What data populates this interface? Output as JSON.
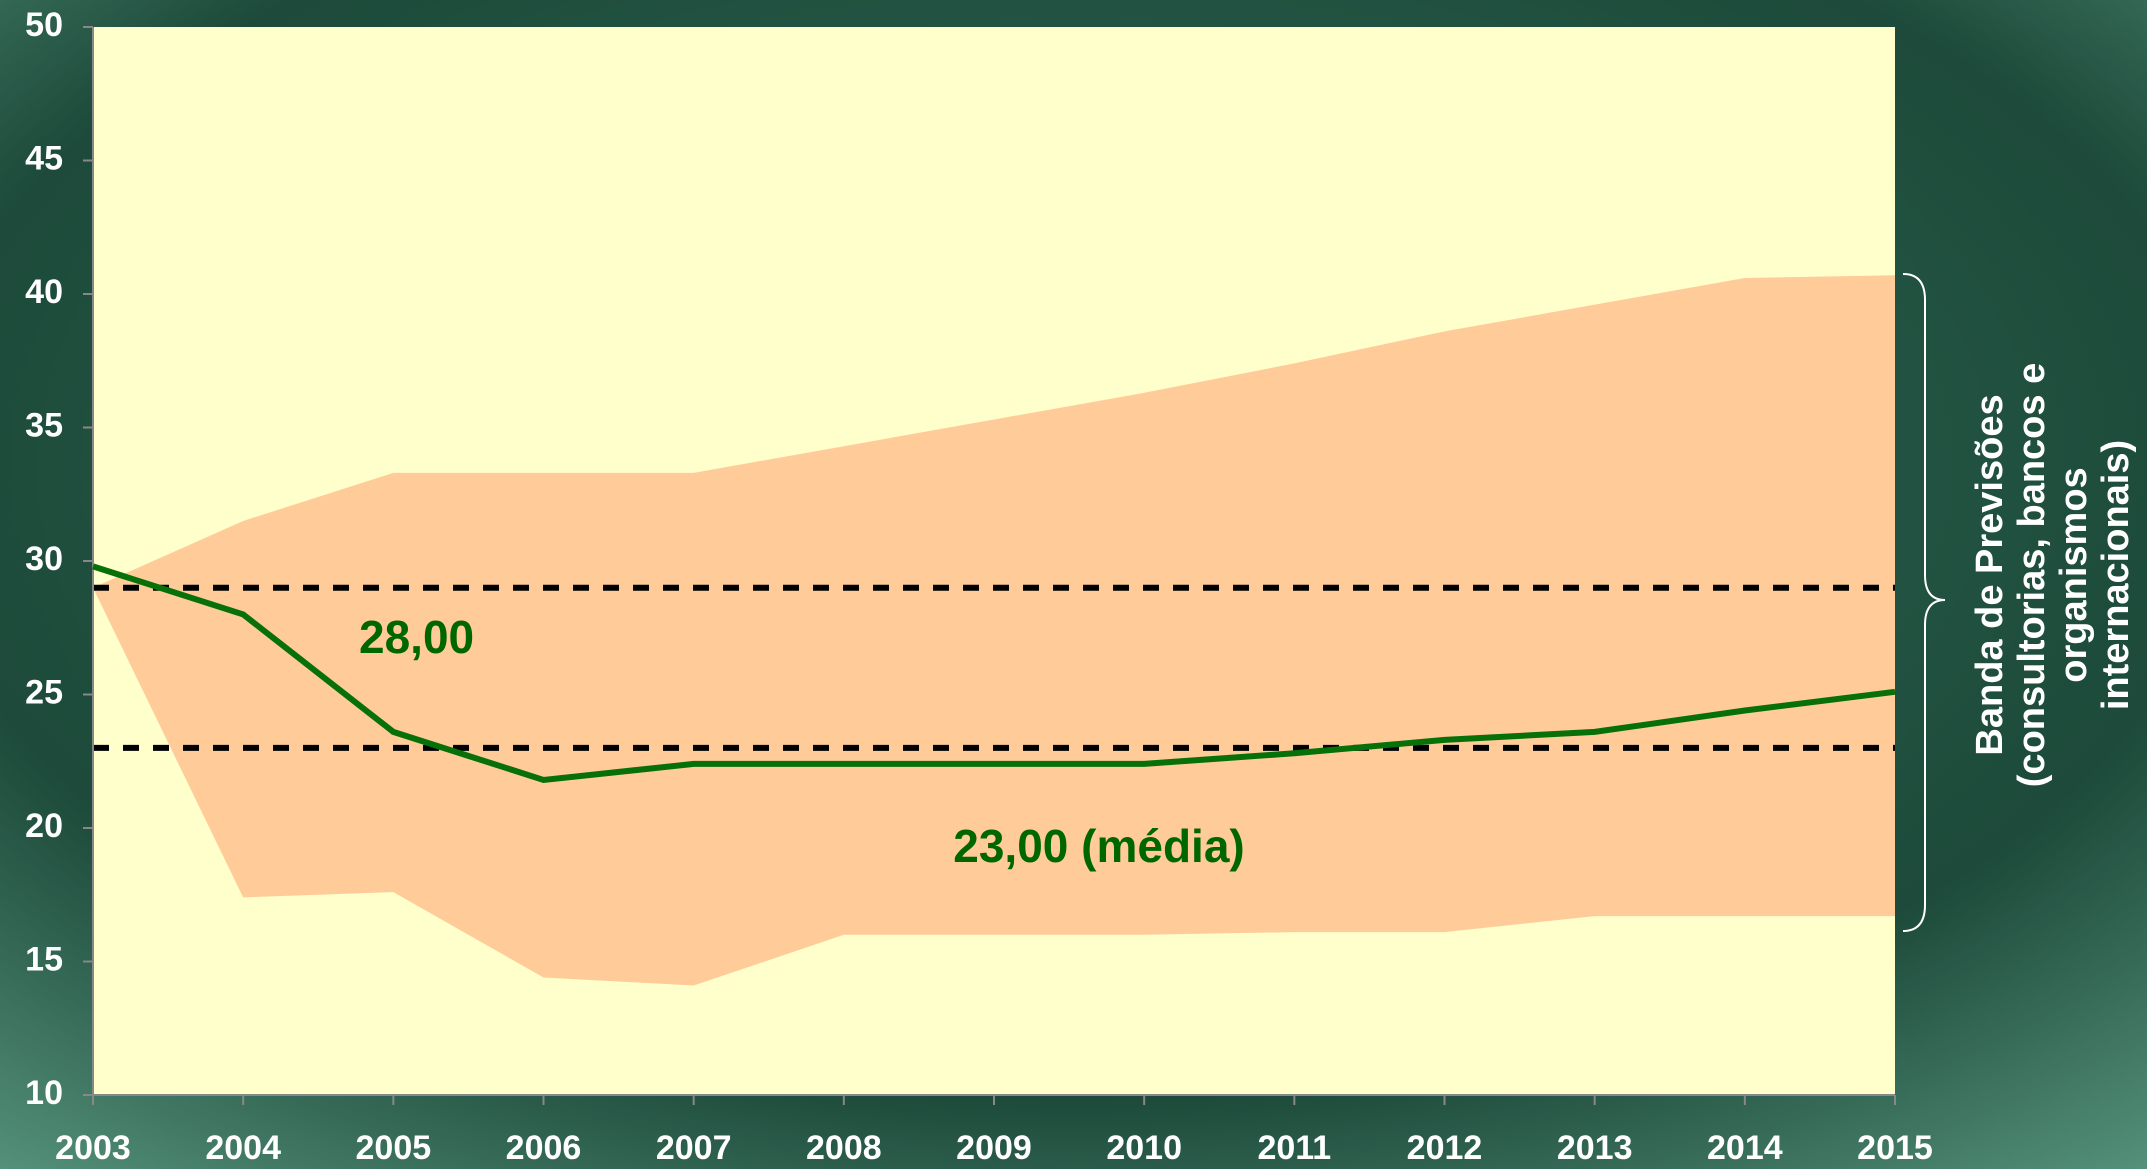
{
  "chart_data": {
    "type": "line",
    "x": [
      2003,
      2004,
      2005,
      2006,
      2007,
      2008,
      2009,
      2010,
      2011,
      2012,
      2013,
      2014,
      2015
    ],
    "series": [
      {
        "color": "#087008",
        "values": [
          29.8,
          28.0,
          23.6,
          21.8,
          22.4,
          22.4,
          22.4,
          22.4,
          22.8,
          23.3,
          23.6,
          24.4,
          25.1
        ]
      }
    ],
    "band": {
      "color": "#ffcc99",
      "lower": [
        29.0,
        17.4,
        17.6,
        14.4,
        14.1,
        16.0,
        16.0,
        16.0,
        16.1,
        16.1,
        16.7,
        16.7,
        16.7
      ],
      "upper": [
        29.0,
        31.5,
        33.3,
        33.3,
        33.3,
        34.3,
        35.3,
        36.3,
        37.4,
        38.6,
        39.6,
        40.6,
        40.7
      ]
    },
    "reference_lines": [
      29,
      23
    ],
    "annotations": [
      "28,00",
      "23,00 (média)"
    ],
    "band_label": [
      "Banda de Previsões",
      "(consultorias, bancos e",
      "organismos",
      "internacionais)"
    ],
    "xlim": [
      2003,
      2015
    ],
    "xticks": [
      2003,
      2004,
      2005,
      2006,
      2007,
      2008,
      2009,
      2010,
      2011,
      2012,
      2013,
      2014,
      2015
    ],
    "ylim": [
      10,
      50
    ],
    "yticks": [
      10,
      15,
      20,
      25,
      30,
      35,
      40,
      45,
      50
    ]
  }
}
